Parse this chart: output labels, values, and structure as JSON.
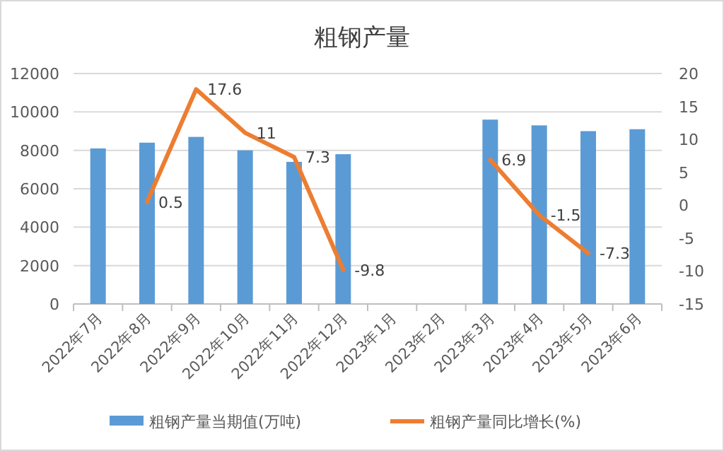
{
  "chart_data": {
    "type": "bar",
    "title": "粗钢产量",
    "categories": [
      "2022年7月",
      "2022年8月",
      "2022年9月",
      "2022年10月",
      "2022年11月",
      "2022年12月",
      "2023年1月",
      "2023年2月",
      "2023年3月",
      "2023年4月",
      "2023年5月",
      "2023年6月"
    ],
    "series": [
      {
        "name": "粗钢产量当期值(万吨)",
        "color": "#5b9bd5",
        "values": [
          8100,
          8400,
          8700,
          8000,
          7400,
          7800,
          null,
          null,
          9600,
          9300,
          9000,
          9100
        ]
      },
      {
        "name": "粗钢产量同比增长(%)",
        "type": "line",
        "axis": "y2",
        "color": "#ed7d31",
        "values": [
          null,
          0.5,
          17.6,
          11,
          7.3,
          -9.8,
          null,
          null,
          6.9,
          -1.5,
          -7.3,
          null
        ],
        "value_labels": [
          null,
          "0.5",
          "17.6",
          "11",
          "7.3",
          "-9.8",
          null,
          null,
          "6.9",
          "-1.5",
          "-7.3",
          null
        ]
      }
    ],
    "ylim": [
      0,
      12000
    ],
    "yticks": [
      0,
      2000,
      4000,
      6000,
      8000,
      10000,
      12000
    ],
    "y2lim": [
      -15,
      20
    ],
    "y2ticks": [
      -15,
      -10,
      -5,
      0,
      5,
      10,
      15,
      20
    ],
    "grid": "y",
    "legend": "bottom",
    "marker": "none",
    "line_style": "solid"
  }
}
